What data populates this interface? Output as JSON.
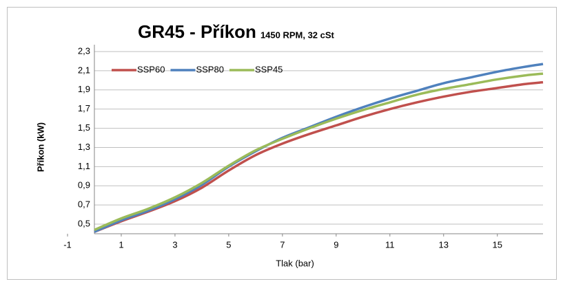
{
  "chart_data": {
    "type": "line",
    "title": "GR45 - Příkon",
    "subtitle": "1450 RPM, 32 cSt",
    "x_label": "Tlak (bar)",
    "y_label": "Příkon (kW)",
    "x": [
      0,
      1,
      2,
      3,
      4,
      5,
      6,
      7,
      8,
      9,
      10,
      11,
      12,
      13,
      14,
      15,
      16,
      16.7
    ],
    "series": [
      {
        "name": "SSP60",
        "color": "#c0504d",
        "values": [
          0.42,
          0.53,
          0.63,
          0.74,
          0.88,
          1.06,
          1.22,
          1.34,
          1.44,
          1.53,
          1.62,
          1.7,
          1.77,
          1.83,
          1.88,
          1.92,
          1.96,
          1.98
        ]
      },
      {
        "name": "SSP80",
        "color": "#4f81bd",
        "values": [
          0.42,
          0.54,
          0.64,
          0.76,
          0.91,
          1.1,
          1.26,
          1.4,
          1.51,
          1.62,
          1.72,
          1.81,
          1.89,
          1.97,
          2.03,
          2.09,
          2.14,
          2.17
        ]
      },
      {
        "name": "SSP45",
        "color": "#9bbb59",
        "values": [
          0.44,
          0.56,
          0.66,
          0.78,
          0.93,
          1.11,
          1.27,
          1.39,
          1.5,
          1.6,
          1.69,
          1.77,
          1.85,
          1.91,
          1.96,
          2.01,
          2.05,
          2.07
        ]
      }
    ],
    "xlim": [
      -1,
      16.7
    ],
    "xticks": [
      -1,
      1,
      3,
      5,
      7,
      9,
      11,
      13,
      15
    ],
    "ylim": [
      0.4,
      2.3
    ],
    "yticks": [
      {
        "value": 0.5,
        "label": "0,5"
      },
      {
        "value": 0.7,
        "label": "0,7"
      },
      {
        "value": 0.9,
        "label": "0,9"
      },
      {
        "value": 1.1,
        "label": "1,1"
      },
      {
        "value": 1.3,
        "label": "1,3"
      },
      {
        "value": 1.5,
        "label": "1,5"
      },
      {
        "value": 1.7,
        "label": "1,7"
      },
      {
        "value": 1.9,
        "label": "1,9"
      },
      {
        "value": 2.1,
        "label": "2,1"
      },
      {
        "value": 2.3,
        "label": "2,3"
      }
    ],
    "grid": true,
    "legend": "top-left"
  }
}
